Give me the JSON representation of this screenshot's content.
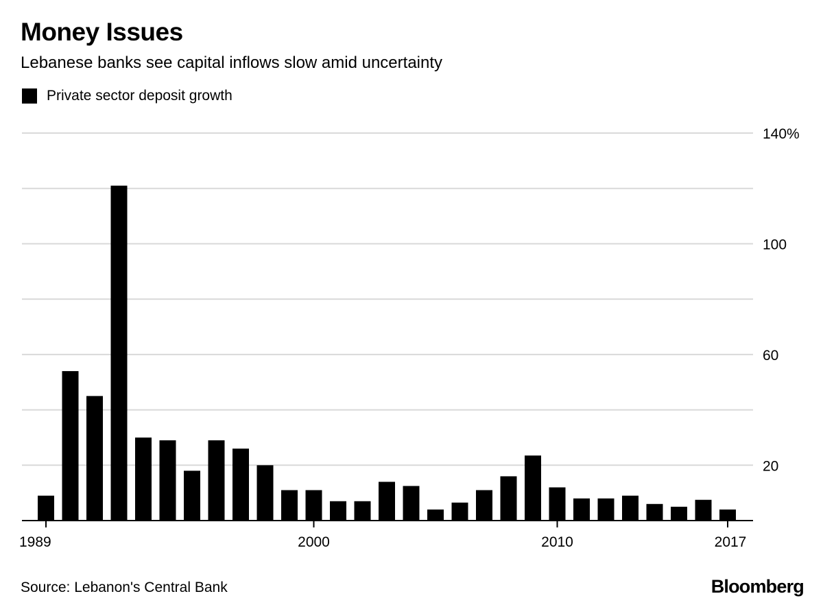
{
  "header": {
    "title": "Money Issues",
    "subtitle": "Lebanese banks see capital inflows slow amid uncertainty"
  },
  "footer": {
    "source": "Source: Lebanon's Central Bank",
    "brand": "Bloomberg"
  },
  "colors": {
    "bar": "#000000",
    "grid": "#d9d9d9",
    "axis": "#000000"
  },
  "chart_data": {
    "type": "bar",
    "title": "Money Issues",
    "subtitle": "Lebanese banks see capital inflows slow amid uncertainty",
    "legend": [
      {
        "name": "Private sector deposit growth",
        "color": "#000000"
      }
    ],
    "legend_position": "top-left",
    "categories": [
      1989,
      1990,
      1991,
      1992,
      1993,
      1994,
      1995,
      1996,
      1997,
      1998,
      1999,
      2000,
      2001,
      2002,
      2003,
      2004,
      2005,
      2006,
      2007,
      2008,
      2009,
      2010,
      2011,
      2012,
      2013,
      2014,
      2015,
      2016,
      2017
    ],
    "series": [
      {
        "name": "Private sector deposit growth",
        "values": [
          9,
          54,
          45,
          121,
          30,
          29,
          18,
          29,
          26,
          20,
          11,
          11,
          7,
          7,
          14,
          12.5,
          4,
          6.5,
          11,
          16,
          23.5,
          12,
          8,
          8,
          9,
          6,
          5,
          7.5,
          4
        ]
      }
    ],
    "xlabel": "",
    "ylabel": "",
    "ylim": [
      0,
      140
    ],
    "y_ticks": [
      0,
      20,
      40,
      60,
      80,
      100,
      120,
      140
    ],
    "y_tick_labels": [
      "20",
      "60",
      "100",
      "140%"
    ],
    "y_tick_label_values": [
      20,
      60,
      100,
      140
    ],
    "x_tick_labels": [
      "1989",
      "2000",
      "2010",
      "2017"
    ],
    "x_tick_label_years": [
      1989,
      2000,
      2010,
      2017
    ],
    "grid": true,
    "y_axis_side": "right"
  }
}
